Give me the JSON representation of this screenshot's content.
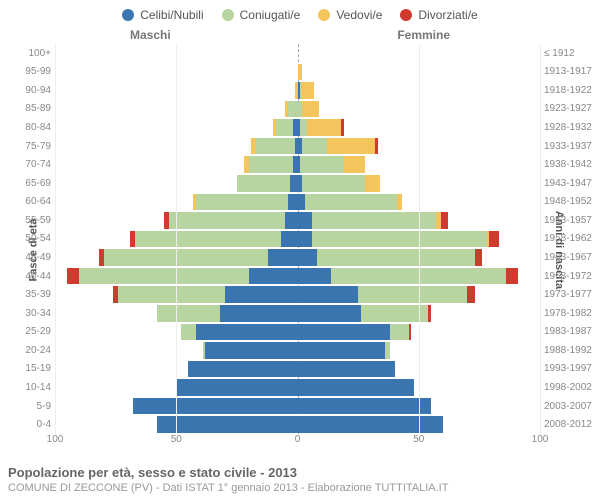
{
  "legend": [
    {
      "label": "Celibi/Nubili",
      "color": "#3b75af"
    },
    {
      "label": "Coniugati/e",
      "color": "#b8d4a0"
    },
    {
      "label": "Vedovi/e",
      "color": "#f4c55c"
    },
    {
      "label": "Divorziati/e",
      "color": "#d03a2f"
    }
  ],
  "genders": {
    "male": "Maschi",
    "female": "Femmine"
  },
  "axis": {
    "left_label": "Fasce di età",
    "right_label": "Anni di nascita",
    "xmax": 100,
    "xticks_male": [
      100,
      50,
      0
    ],
    "xticks_female": [
      0,
      50,
      100
    ]
  },
  "colors": {
    "single": "#3b75af",
    "married": "#b8d4a0",
    "widowed": "#f4c55c",
    "divorced": "#d03a2f",
    "grid": "#eeeeee",
    "centerline": "#aaaaaa",
    "background": "#ffffff"
  },
  "footer": {
    "title": "Popolazione per età, sesso e stato civile - 2013",
    "subtitle": "COMUNE DI ZECCONE (PV) - Dati ISTAT 1° gennaio 2013 - Elaborazione TUTTITALIA.IT"
  },
  "rows": [
    {
      "age": "100+",
      "year": "≤ 1912",
      "m": [
        0,
        0,
        0,
        0
      ],
      "f": [
        0,
        0,
        0,
        0
      ]
    },
    {
      "age": "95-99",
      "year": "1913-1917",
      "m": [
        0,
        0,
        0,
        0
      ],
      "f": [
        0,
        0,
        2,
        0
      ]
    },
    {
      "age": "90-94",
      "year": "1918-1922",
      "m": [
        0,
        0,
        1,
        0
      ],
      "f": [
        1,
        1,
        5,
        0
      ]
    },
    {
      "age": "85-89",
      "year": "1923-1927",
      "m": [
        0,
        4,
        1,
        0
      ],
      "f": [
        0,
        2,
        7,
        0
      ]
    },
    {
      "age": "80-84",
      "year": "1928-1932",
      "m": [
        2,
        7,
        1,
        0
      ],
      "f": [
        1,
        3,
        14,
        1
      ]
    },
    {
      "age": "75-79",
      "year": "1933-1937",
      "m": [
        1,
        16,
        2,
        0
      ],
      "f": [
        2,
        10,
        20,
        1
      ]
    },
    {
      "age": "70-74",
      "year": "1938-1942",
      "m": [
        2,
        18,
        2,
        0
      ],
      "f": [
        1,
        18,
        9,
        0
      ]
    },
    {
      "age": "65-69",
      "year": "1943-1947",
      "m": [
        3,
        22,
        0,
        0
      ],
      "f": [
        2,
        26,
        6,
        0
      ]
    },
    {
      "age": "60-64",
      "year": "1948-1952",
      "m": [
        4,
        38,
        1,
        0
      ],
      "f": [
        3,
        38,
        2,
        0
      ]
    },
    {
      "age": "55-59",
      "year": "1953-1957",
      "m": [
        5,
        48,
        0,
        2
      ],
      "f": [
        6,
        51,
        2,
        3
      ]
    },
    {
      "age": "50-54",
      "year": "1958-1962",
      "m": [
        7,
        60,
        0,
        2
      ],
      "f": [
        6,
        72,
        1,
        4
      ]
    },
    {
      "age": "45-49",
      "year": "1963-1967",
      "m": [
        12,
        68,
        0,
        2
      ],
      "f": [
        8,
        65,
        0,
        3
      ]
    },
    {
      "age": "40-44",
      "year": "1968-1972",
      "m": [
        20,
        70,
        0,
        5
      ],
      "f": [
        14,
        72,
        0,
        5
      ]
    },
    {
      "age": "35-39",
      "year": "1973-1977",
      "m": [
        30,
        44,
        0,
        2
      ],
      "f": [
        25,
        45,
        0,
        3
      ]
    },
    {
      "age": "30-34",
      "year": "1978-1982",
      "m": [
        32,
        26,
        0,
        0
      ],
      "f": [
        26,
        28,
        0,
        1
      ]
    },
    {
      "age": "25-29",
      "year": "1983-1987",
      "m": [
        42,
        6,
        0,
        0
      ],
      "f": [
        38,
        8,
        0,
        1
      ]
    },
    {
      "age": "20-24",
      "year": "1988-1992",
      "m": [
        38,
        1,
        0,
        0
      ],
      "f": [
        36,
        2,
        0,
        0
      ]
    },
    {
      "age": "15-19",
      "year": "1993-1997",
      "m": [
        45,
        0,
        0,
        0
      ],
      "f": [
        40,
        0,
        0,
        0
      ]
    },
    {
      "age": "10-14",
      "year": "1998-2002",
      "m": [
        50,
        0,
        0,
        0
      ],
      "f": [
        48,
        0,
        0,
        0
      ]
    },
    {
      "age": "5-9",
      "year": "2003-2007",
      "m": [
        68,
        0,
        0,
        0
      ],
      "f": [
        55,
        0,
        0,
        0
      ]
    },
    {
      "age": "0-4",
      "year": "2008-2012",
      "m": [
        58,
        0,
        0,
        0
      ],
      "f": [
        60,
        0,
        0,
        0
      ]
    }
  ]
}
